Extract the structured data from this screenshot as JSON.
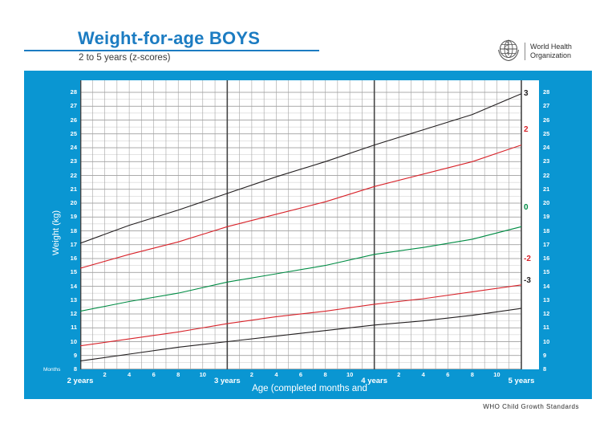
{
  "header": {
    "title": "Weight-for-age BOYS",
    "subtitle": "2 to 5 years (z-scores)",
    "logo_line1": "World Health",
    "logo_line2": "Organization"
  },
  "chart": {
    "ylabel": "Weight (kg)",
    "xlabel": "Age (completed months and",
    "months_label": "Months"
  },
  "footer": {
    "text": "WHO Child Growth Standards"
  },
  "colors": {
    "panel_blue": "#0a96d2",
    "title_blue": "#1c7cc2",
    "zscore_black": "#231f20",
    "zscore_red": "#d8232a",
    "zscore_green": "#008c44"
  },
  "chart_data": {
    "type": "line",
    "title": "Weight-for-age BOYS, 2 to 5 years (z-scores)",
    "xlabel": "Age (completed months and years)",
    "ylabel": "Weight (kg)",
    "xlim": [
      24,
      60
    ],
    "ylim": [
      8,
      28
    ],
    "grid": true,
    "x_months": [
      24,
      28,
      32,
      36,
      40,
      44,
      48,
      52,
      56,
      60
    ],
    "y_ticks": [
      "28",
      "27",
      "26",
      "25",
      "24",
      "23",
      "22",
      "21",
      "20",
      "19",
      "18",
      "17",
      "16",
      "15",
      "14",
      "13",
      "12",
      "11",
      "10",
      "9",
      "8"
    ],
    "month_ticks": [
      "2",
      "4",
      "6",
      "8",
      "10"
    ],
    "year_labels": [
      "2 years",
      "3 years",
      "4 years",
      "5 years"
    ],
    "series": [
      {
        "name": "3",
        "zscore": 3,
        "color": "#231f20",
        "label_kg": 27.8,
        "values": [
          17.1,
          18.4,
          19.5,
          20.7,
          21.9,
          23.0,
          24.2,
          25.3,
          26.4,
          27.9
        ]
      },
      {
        "name": "2",
        "zscore": 2,
        "color": "#d8232a",
        "label_kg": 25.2,
        "values": [
          15.3,
          16.3,
          17.2,
          18.3,
          19.2,
          20.1,
          21.2,
          22.1,
          23.0,
          24.2
        ]
      },
      {
        "name": "0",
        "zscore": 0,
        "color": "#008c44",
        "label_kg": 19.6,
        "values": [
          12.2,
          12.9,
          13.5,
          14.3,
          14.9,
          15.5,
          16.3,
          16.8,
          17.4,
          18.3
        ]
      },
      {
        "name": "-2",
        "zscore": -2,
        "color": "#d8232a",
        "label_kg": 15.9,
        "values": [
          9.7,
          10.2,
          10.7,
          11.3,
          11.8,
          12.2,
          12.7,
          13.1,
          13.6,
          14.1
        ]
      },
      {
        "name": "-3",
        "zscore": -3,
        "color": "#231f20",
        "label_kg": 14.3,
        "values": [
          8.6,
          9.1,
          9.6,
          10.0,
          10.4,
          10.8,
          11.2,
          11.5,
          11.9,
          12.4
        ]
      }
    ]
  }
}
